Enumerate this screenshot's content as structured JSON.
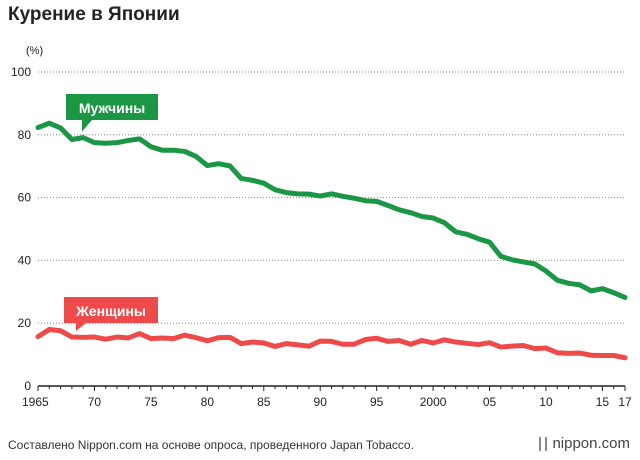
{
  "page": {
    "title": "Курение в Японии",
    "footer": "Составлено Nippon.com на основе опроса, проведенного Japan Tobacco.",
    "brand": "nippon.com"
  },
  "colors": {
    "men": "#1a9645",
    "women": "#ef4a4a",
    "grid": "#888888",
    "axis": "#222222"
  },
  "chart_data": {
    "type": "line",
    "title": "Курение в Японии",
    "ylabel": "(%)",
    "xlabel": "",
    "ylim": [
      0,
      100
    ],
    "xlim": [
      1965,
      2017
    ],
    "y_ticks": [
      0,
      20,
      40,
      60,
      80,
      100
    ],
    "y_tick_labels": [
      "0",
      "20",
      "40",
      "60",
      "80",
      "100"
    ],
    "x_ticks": [
      1965,
      1970,
      1975,
      1980,
      1985,
      1990,
      1995,
      2000,
      2005,
      2010,
      2015,
      2017
    ],
    "x_tick_labels": [
      "1965",
      "70",
      "75",
      "80",
      "85",
      "90",
      "95",
      "2000",
      "05",
      "10",
      "15",
      "17"
    ],
    "grid": "horizontal",
    "x": [
      1965,
      1966,
      1967,
      1968,
      1969,
      1970,
      1971,
      1972,
      1973,
      1974,
      1975,
      1976,
      1977,
      1978,
      1979,
      1980,
      1981,
      1982,
      1983,
      1984,
      1985,
      1986,
      1987,
      1988,
      1989,
      1990,
      1991,
      1992,
      1993,
      1994,
      1995,
      1996,
      1997,
      1998,
      1999,
      2000,
      2001,
      2002,
      2003,
      2004,
      2005,
      2006,
      2007,
      2008,
      2009,
      2010,
      2011,
      2012,
      2013,
      2014,
      2015,
      2016,
      2017
    ],
    "series": [
      {
        "name": "Мужчины",
        "color": "#1a9645",
        "values": [
          82.3,
          83.7,
          82.2,
          78.5,
          79.1,
          77.5,
          77.3,
          77.5,
          78.2,
          78.7,
          76.2,
          75.1,
          75.1,
          74.7,
          73.1,
          70.2,
          70.8,
          70.1,
          66.1,
          65.5,
          64.6,
          62.5,
          61.6,
          61.2,
          61.1,
          60.5,
          61.2,
          60.4,
          59.8,
          59.0,
          58.8,
          57.5,
          56.1,
          55.2,
          54.0,
          53.5,
          52.0,
          49.1,
          48.3,
          46.9,
          45.8,
          41.3,
          40.2,
          39.5,
          38.9,
          36.6,
          33.7,
          32.7,
          32.2,
          30.3,
          31.0,
          29.7,
          28.2
        ]
      },
      {
        "name": "Женщины",
        "color": "#ef4a4a",
        "values": [
          15.7,
          18.0,
          17.6,
          15.6,
          15.5,
          15.6,
          14.9,
          15.6,
          15.3,
          16.7,
          15.1,
          15.3,
          15.1,
          16.2,
          15.4,
          14.4,
          15.4,
          15.5,
          13.5,
          14.0,
          13.7,
          12.6,
          13.5,
          13.1,
          12.7,
          14.3,
          14.2,
          13.3,
          13.3,
          14.8,
          15.2,
          14.2,
          14.5,
          13.3,
          14.5,
          13.7,
          14.7,
          14.0,
          13.6,
          13.2,
          13.8,
          12.4,
          12.7,
          12.9,
          11.9,
          12.1,
          10.6,
          10.4,
          10.5,
          9.8,
          9.7,
          9.7,
          9.0
        ]
      }
    ]
  }
}
